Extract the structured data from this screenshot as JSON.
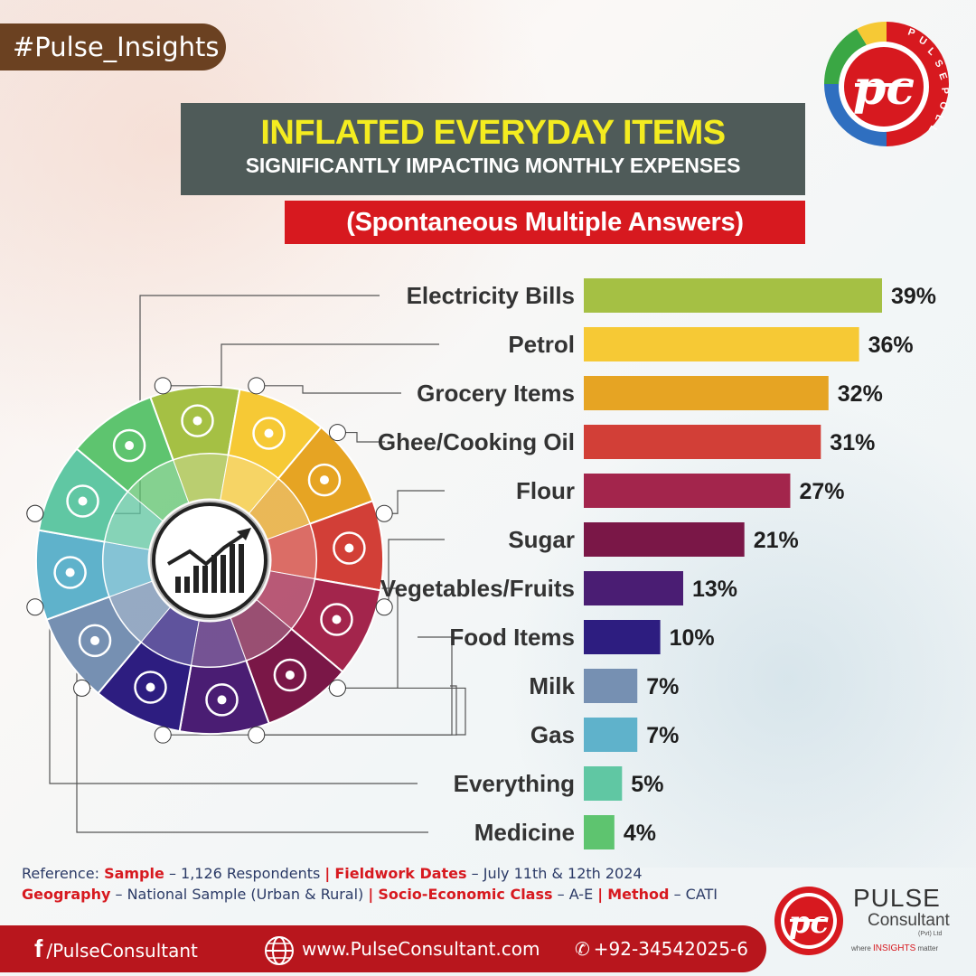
{
  "hashtag": "#Pulse_Insights",
  "title": "INFLATED EVERYDAY ITEMS",
  "subtitle": "SIGNIFICANTLY IMPACTING MONTHLY EXPENSES",
  "note": "(Spontaneous Multiple Answers)",
  "logo_text": "PULSEPOLL",
  "chart_data": {
    "type": "bar",
    "orientation": "horizontal",
    "categories": [
      "Electricity Bills",
      "Petrol",
      "Grocery Items",
      "Ghee/Cooking Oil",
      "Flour",
      "Sugar",
      "Vegetables/Fruits",
      "Food Items",
      "Milk",
      "Gas",
      "Everything",
      "Medicine"
    ],
    "values": [
      39,
      36,
      32,
      31,
      27,
      21,
      13,
      10,
      7,
      7,
      5,
      4
    ],
    "value_labels": [
      "39%",
      "36%",
      "32%",
      "31%",
      "27%",
      "21%",
      "13%",
      "10%",
      "7%",
      "7%",
      "5%",
      "4%"
    ],
    "colors": [
      "#a5c044",
      "#f6c935",
      "#e6a423",
      "#d23f37",
      "#a3254c",
      "#7a1747",
      "#4a1d73",
      "#2d1d80",
      "#7690b2",
      "#5fb2cb",
      "#60c7a3",
      "#5ec46f"
    ],
    "unit": "%"
  },
  "wheel": {
    "segments": [
      {
        "icon": "lightning-icon",
        "color": "#a5c044"
      },
      {
        "icon": "fuel-pump-icon",
        "color": "#f6c935"
      },
      {
        "icon": "shopping-cart-icon",
        "color": "#e6a423"
      },
      {
        "icon": "oil-bottle-icon",
        "color": "#d23f37"
      },
      {
        "icon": "flour-sack-icon",
        "color": "#a3254c"
      },
      {
        "icon": "sugar-jar-icon",
        "color": "#7a1747"
      },
      {
        "icon": "vegetables-icon",
        "color": "#4a1d73"
      },
      {
        "icon": "fast-food-icon",
        "color": "#2d1d80"
      },
      {
        "icon": "milk-carton-icon",
        "color": "#7690b2"
      },
      {
        "icon": "gas-cylinder-icon",
        "color": "#5fb2cb"
      },
      {
        "icon": "network-icon",
        "color": "#60c7a3"
      },
      {
        "icon": "pills-icon",
        "color": "#5ec46f"
      }
    ],
    "center_icon": "growth-chart-icon"
  },
  "reference": {
    "label": "Reference:",
    "sample_label": "Sample",
    "sample_value": "– 1,126 Respondents",
    "fieldwork_label": "Fieldwork Dates",
    "fieldwork_value": "– July 11th & 12th 2024",
    "geography_label": "Geography",
    "geography_value": "– National Sample (Urban & Rural)",
    "class_label": "Socio-Economic Class",
    "class_value": "– A-E",
    "method_label": "Method",
    "method_value": "– CATI"
  },
  "footer": {
    "facebook": "/PulseConsultant",
    "website": "www.PulseConsultant.com",
    "phone": "+92-34542025-6"
  },
  "brand": {
    "name": "PULSE",
    "sub": "Consultant",
    "pvt": "(Pvt) Ltd",
    "tag_prefix": "where",
    "tag_highlight": "INSIGHTS",
    "tag_suffix": "matter"
  }
}
